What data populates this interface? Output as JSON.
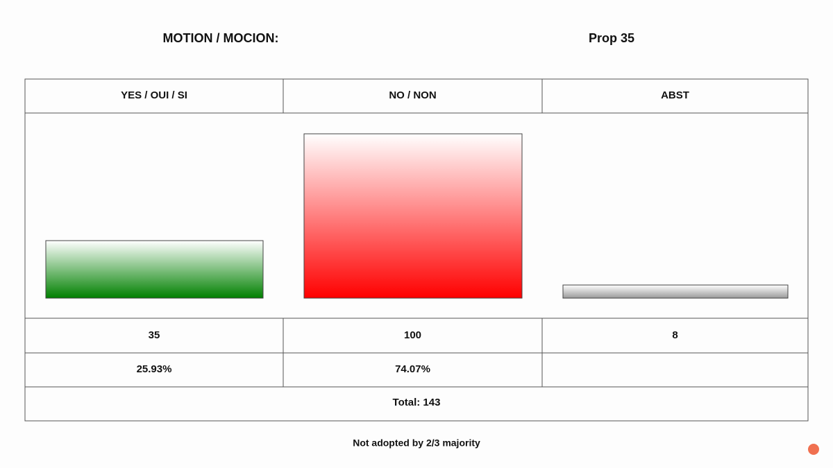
{
  "chart_data": {
    "type": "bar",
    "title": "MOTION / MOCION:",
    "subtitle": "Prop 35",
    "categories": [
      "YES / OUI / SI",
      "NO / NON",
      "ABST"
    ],
    "values": [
      35,
      100,
      8
    ],
    "colors": [
      "#008000",
      "#ff0000",
      "#9a9a9a"
    ],
    "percent_labels": [
      "25.93%",
      "74.07%"
    ],
    "total_label": "Total: 143",
    "ylim": [
      0,
      100
    ],
    "footnote": "Not adopted by 2/3 majority"
  }
}
